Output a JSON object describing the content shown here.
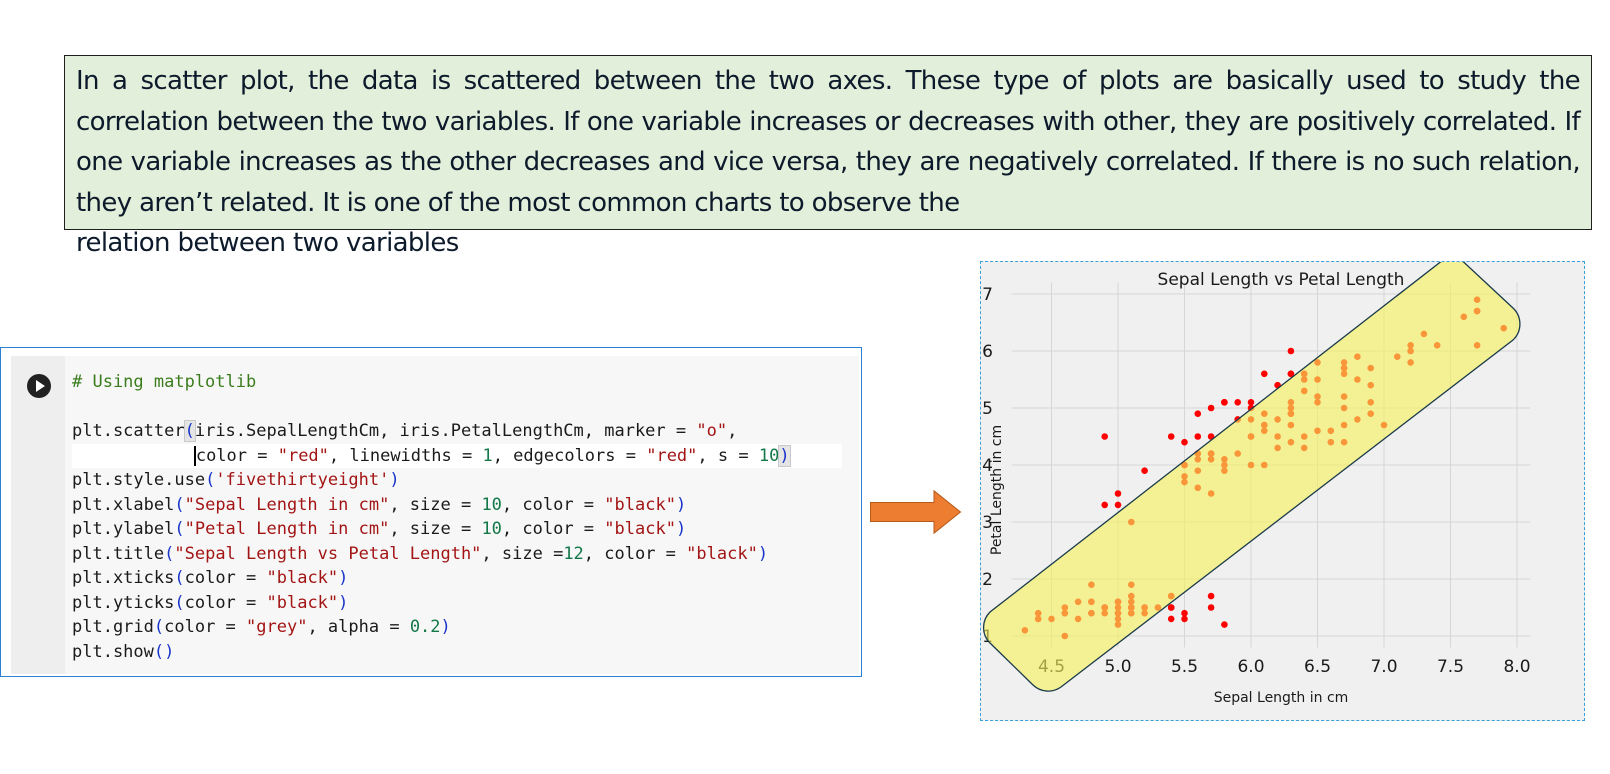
{
  "callout": {
    "paragraph": "In a scatter plot, the data is scattered between the two axes. These type of plots are basically used to study the correlation between the two variables. If one variable increases or decreases with other, they are positively correlated. If one variable increases as the other decreases and vice versa, they are negatively correlated. If there is no such relation, they aren’t related. It is one of the most common charts to observe the",
    "last_line": "relation between two variables",
    "bg_color": "#e2efda"
  },
  "code_cell": {
    "run_icon": "play-circle-icon",
    "line1": "# Using matplotlib",
    "line3a": "plt.scatter",
    "line3b": "iris.SepalLengthCm, iris.PetalLengthCm, marker = ",
    "line3c": "\"o\"",
    "line3d": ",",
    "line4a": "color = ",
    "line4b": "\"red\"",
    "line4c": ", linewidths = ",
    "line4d": "1",
    "line4e": ", edgecolors = ",
    "line4f": "\"red\"",
    "line4g": ", s = ",
    "line4h": "10",
    "line5a": "plt.style.use",
    "line5b": "'fivethirtyeight'",
    "line6a": "plt.xlabel",
    "line6b": "\"Sepal Length in cm\"",
    "line6c": ", size = ",
    "line6d": "10",
    "line6e": ", color = ",
    "line6f": "\"black\"",
    "line7a": "plt.ylabel",
    "line7b": "\"Petal Length in cm\"",
    "line7c": ", size = ",
    "line7d": "10",
    "line7e": ", color = ",
    "line7f": "\"black\"",
    "line8a": "plt.title",
    "line8b": "\"Sepal Length vs Petal Length\"",
    "line8c": ", size =",
    "line8d": "12",
    "line8e": ", color = ",
    "line8f": "\"black\"",
    "line9a": "plt.xticks",
    "line9b": "color = ",
    "line9c": "\"black\"",
    "line10a": "plt.yticks",
    "line10b": "color = ",
    "line10c": "\"black\"",
    "line11a": "plt.grid",
    "line11b": "color = ",
    "line11c": "\"grey\"",
    "line11d": ", alpha = ",
    "line11e": "0.2",
    "line12": "plt.show",
    "colors": {
      "comment": "#3b7d1d",
      "string": "#a31515",
      "number": "#137748",
      "paren": "#1a35c9"
    }
  },
  "arrow": {
    "icon": "right-arrow-icon",
    "color": "#ed7d31"
  },
  "highlight_color": "#f5f25c",
  "chart_data": {
    "type": "scatter",
    "title": "Sepal Length vs Petal Length",
    "xlabel": "Sepal Length in cm",
    "ylabel": "Petal Length in cm",
    "xlim": [
      4.2,
      8.1
    ],
    "ylim": [
      0.8,
      7.2
    ],
    "xticks": [
      4.5,
      5.0,
      5.5,
      6.0,
      6.5,
      7.0,
      7.5,
      8.0
    ],
    "xtick_labels": [
      "4.5",
      "5.0",
      "5.5",
      "6.0",
      "6.5",
      "7.0",
      "7.5",
      "8.0"
    ],
    "yticks": [
      1,
      2,
      3,
      4,
      5,
      6,
      7
    ],
    "ytick_labels": [
      "1",
      "2",
      "3",
      "4",
      "5",
      "6",
      "7"
    ],
    "grid": true,
    "marker_color": "#ff0000",
    "x": [
      5.1,
      4.9,
      4.7,
      4.6,
      5.0,
      5.4,
      4.6,
      5.0,
      4.4,
      4.9,
      5.4,
      4.8,
      4.8,
      4.3,
      5.8,
      5.7,
      5.4,
      5.1,
      5.7,
      5.1,
      5.4,
      5.1,
      4.6,
      5.1,
      4.8,
      5.0,
      5.0,
      5.2,
      5.2,
      4.7,
      4.8,
      5.4,
      5.2,
      5.5,
      4.9,
      5.0,
      5.5,
      4.9,
      4.4,
      5.1,
      5.0,
      4.5,
      4.4,
      5.0,
      5.1,
      4.8,
      5.1,
      4.6,
      5.3,
      5.0,
      7.0,
      6.4,
      6.9,
      5.5,
      6.5,
      5.7,
      6.3,
      4.9,
      6.6,
      5.2,
      5.0,
      5.9,
      6.0,
      6.1,
      5.6,
      6.7,
      5.6,
      5.8,
      6.2,
      5.6,
      5.9,
      6.1,
      6.3,
      6.1,
      6.4,
      6.6,
      6.8,
      6.7,
      6.0,
      5.7,
      5.5,
      5.5,
      5.8,
      6.0,
      5.4,
      6.0,
      6.7,
      6.3,
      5.6,
      5.5,
      5.5,
      6.1,
      5.8,
      5.0,
      5.6,
      5.7,
      5.7,
      6.2,
      5.1,
      5.7,
      6.3,
      5.8,
      7.1,
      6.3,
      6.5,
      7.6,
      4.9,
      7.3,
      6.7,
      7.2,
      6.5,
      6.4,
      6.8,
      5.7,
      5.8,
      6.4,
      6.5,
      7.7,
      7.7,
      6.0,
      6.9,
      5.6,
      7.7,
      6.3,
      6.7,
      7.2,
      6.2,
      6.1,
      6.4,
      7.2,
      7.4,
      7.9,
      6.4,
      6.3,
      6.1,
      7.7,
      6.3,
      6.4,
      6.0,
      6.9,
      6.7,
      6.9,
      5.8,
      6.8,
      6.7,
      6.7,
      6.3,
      6.5,
      6.2,
      5.9
    ],
    "y": [
      1.4,
      1.4,
      1.3,
      1.5,
      1.4,
      1.7,
      1.4,
      1.5,
      1.4,
      1.5,
      1.5,
      1.6,
      1.4,
      1.1,
      1.2,
      1.5,
      1.3,
      1.4,
      1.7,
      1.5,
      1.7,
      1.5,
      1.0,
      1.7,
      1.9,
      1.6,
      1.6,
      1.5,
      1.4,
      1.6,
      1.6,
      1.5,
      1.5,
      1.4,
      1.5,
      1.2,
      1.3,
      1.5,
      1.3,
      1.5,
      1.3,
      1.3,
      1.3,
      1.6,
      1.9,
      1.4,
      1.6,
      1.4,
      1.5,
      1.4,
      4.7,
      4.5,
      4.9,
      4.0,
      4.6,
      4.5,
      4.7,
      3.3,
      4.6,
      3.9,
      3.5,
      4.2,
      4.0,
      4.7,
      3.6,
      4.4,
      4.5,
      4.1,
      4.5,
      3.9,
      4.8,
      4.0,
      4.9,
      4.7,
      4.3,
      4.4,
      4.8,
      5.0,
      4.5,
      3.5,
      3.8,
      3.7,
      3.9,
      5.1,
      4.5,
      4.5,
      4.7,
      4.4,
      4.1,
      4.0,
      4.4,
      4.6,
      4.0,
      3.3,
      4.2,
      4.2,
      4.2,
      4.3,
      3.0,
      4.1,
      6.0,
      5.1,
      5.9,
      5.6,
      5.8,
      6.6,
      4.5,
      6.3,
      5.8,
      6.1,
      5.1,
      5.3,
      5.5,
      5.0,
      5.1,
      5.3,
      5.5,
      6.7,
      6.9,
      5.0,
      5.7,
      4.9,
      6.7,
      4.9,
      5.7,
      6.0,
      4.8,
      4.9,
      5.6,
      5.8,
      6.1,
      6.4,
      5.6,
      5.1,
      5.6,
      6.1,
      5.6,
      5.5,
      4.8,
      5.4,
      5.6,
      5.1,
      5.1,
      5.9,
      5.7,
      5.2,
      5.0,
      5.2,
      5.4,
      5.1
    ]
  }
}
